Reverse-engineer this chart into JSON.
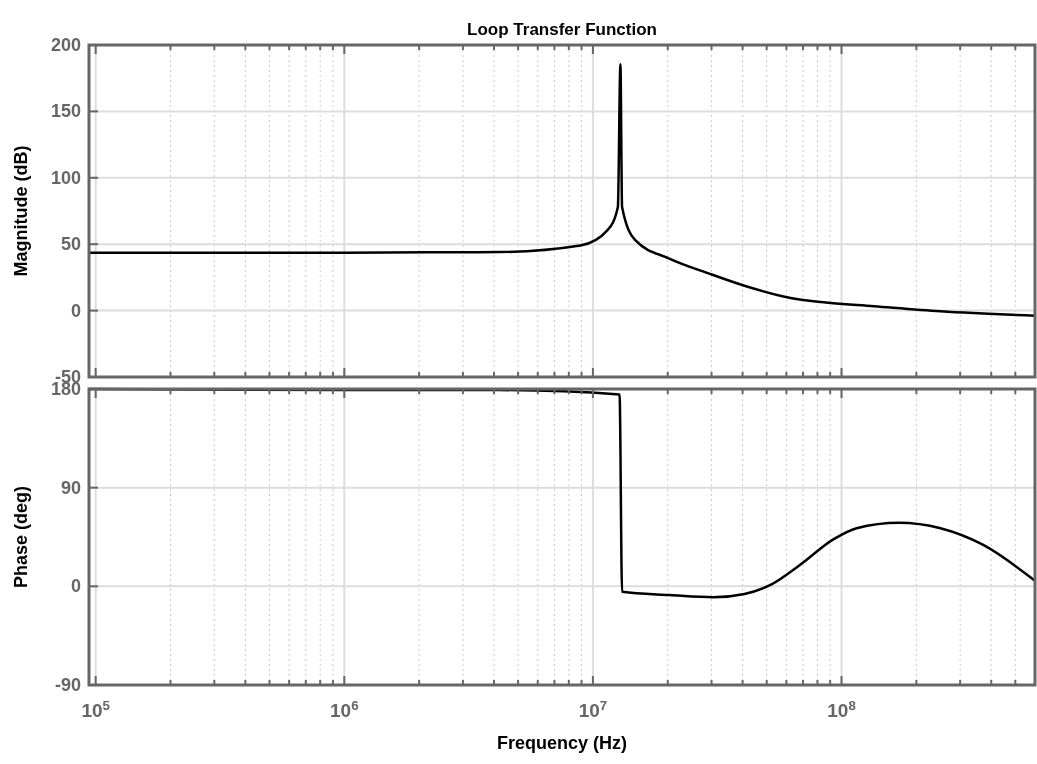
{
  "chart_data": [
    {
      "type": "line",
      "title": "Loop Transfer Function",
      "ylabel": "Magnitude (dB)",
      "log": "x",
      "grid": true,
      "tick_labels": "y",
      "line_style": "solid",
      "xlim": [
        94000,
        600000000
      ],
      "ylim": [
        -50,
        200
      ],
      "xticks": [
        {
          "value": 100000,
          "label": null
        },
        {
          "value": 1000000,
          "label": null
        },
        {
          "value": 10000000,
          "label": null
        },
        {
          "value": 100000000,
          "label": null
        }
      ],
      "yticks": [
        -50,
        0,
        50,
        100,
        150,
        200
      ],
      "series": [
        {
          "color": "#000000",
          "x": [
            94000,
            1000000,
            3000000,
            4200000,
            8900000,
            11500000,
            12600000,
            12900000,
            13100000,
            14800000,
            20400000,
            29500000,
            40700000,
            61700000,
            83000000,
            135000000,
            250000000,
            600000000
          ],
          "values": [
            43.5,
            43.5,
            44,
            44.1,
            49,
            61,
            78,
            185.5,
            78,
            53,
            39,
            27.7,
            18.7,
            9.7,
            6.4,
            3.3,
            -0.5,
            -3.8
          ]
        }
      ]
    },
    {
      "type": "line",
      "xlabel": "Frequency  (Hz)",
      "ylabel": "Phase (deg)",
      "log": "x",
      "grid": true,
      "line_style": "solid",
      "xlim": [
        94000,
        600000000
      ],
      "ylim": [
        -90,
        180
      ],
      "xticks": [
        {
          "value": 100000,
          "label": "10$^{5}$"
        },
        {
          "value": 1000000,
          "label": "10$^{6}$"
        },
        {
          "value": 10000000,
          "label": "10$^{7}$"
        },
        {
          "value": 100000000,
          "label": "10$^{8}$"
        }
      ],
      "yticks": [
        -90,
        0,
        90,
        180
      ],
      "series": [
        {
          "color": "#000000",
          "x": [
            94000,
            1000000,
            3000000,
            4200000,
            12800000,
            13100000,
            20400000,
            30500000,
            40700000,
            52500000,
            67600000,
            93000000,
            115000000,
            170000000,
            250000000,
            370000000,
            600000000
          ],
          "values": [
            180,
            179,
            179,
            179,
            175,
            -5,
            -8,
            -10,
            -7,
            2,
            19,
            43,
            53,
            58,
            53,
            38,
            5
          ]
        }
      ]
    }
  ]
}
